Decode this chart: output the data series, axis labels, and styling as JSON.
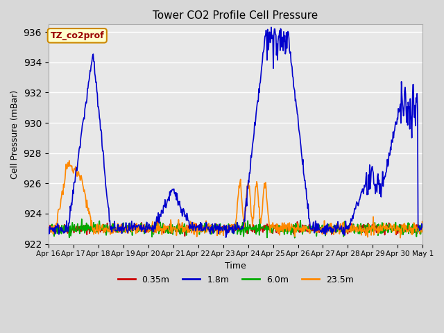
{
  "title": "Tower CO2 Profile Cell Pressure",
  "xlabel": "Time",
  "ylabel": "Cell Pressure (mBar)",
  "ylim": [
    922,
    936.5
  ],
  "yticks": [
    922,
    924,
    926,
    928,
    930,
    932,
    934,
    936
  ],
  "annotation_text": "TZ_co2prof",
  "annotation_bg": "#ffffcc",
  "annotation_border": "#cc8800",
  "annotation_text_color": "#990000",
  "legend_colors": [
    "#cc0000",
    "#0000cc",
    "#00aa00",
    "#ff8800"
  ],
  "num_days": 15,
  "seed": 42
}
